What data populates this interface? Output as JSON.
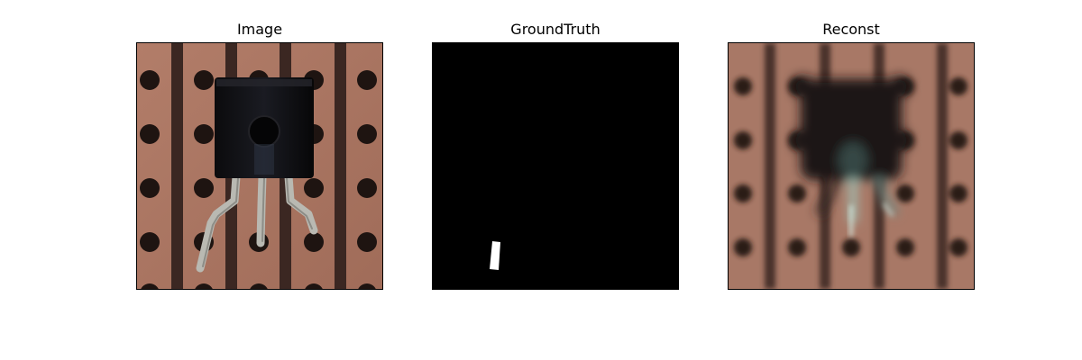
{
  "figure": {
    "panels": [
      {
        "title": "Image",
        "icon": "board-with-transistor-photo"
      },
      {
        "title": "GroundTruth",
        "icon": "binary-mask"
      },
      {
        "title": "Reconst",
        "icon": "blurred-reconstruction"
      }
    ],
    "colors": {
      "board": "#b07a66",
      "board_dark": "#8f5e4d",
      "stripe": "#3b2722",
      "hole": "#1e1411",
      "component": "#0d0d0f",
      "lead": "#b9b9b2",
      "mask_background": "#000000",
      "mask_foreground": "#ffffff"
    }
  }
}
